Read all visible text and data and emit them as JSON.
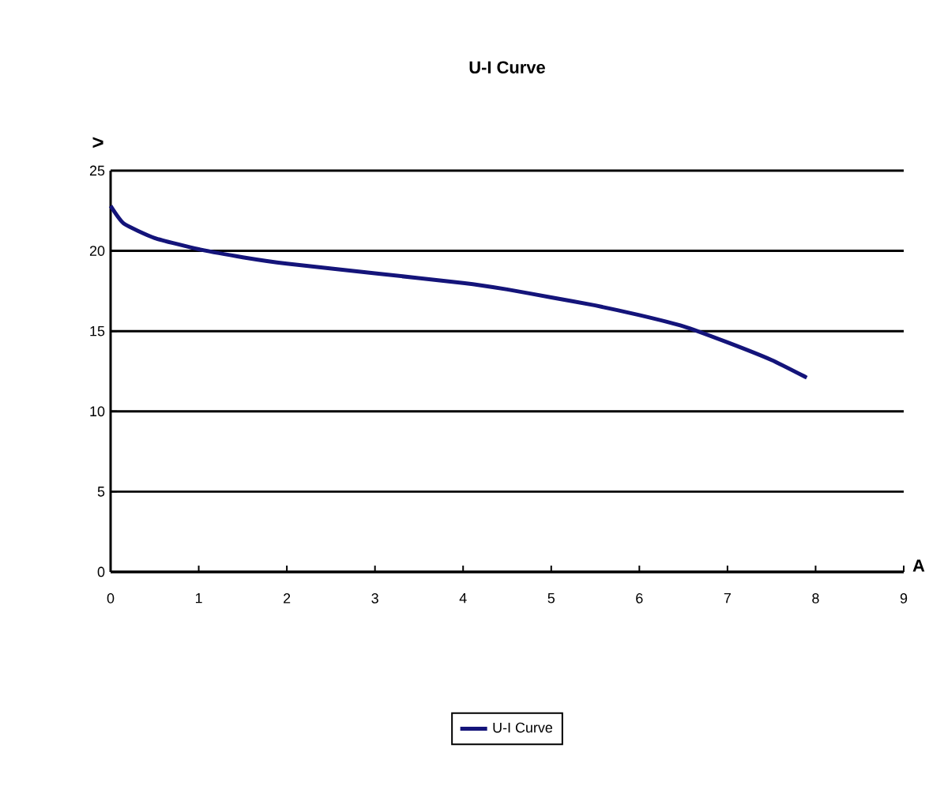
{
  "chart_data": {
    "type": "line",
    "title": "U-I Curve",
    "xlabel": "A",
    "ylabel": ">",
    "series": [
      {
        "name": "U-I Curve",
        "color": "#14147a",
        "x": [
          0,
          0.15,
          0.5,
          1,
          1.5,
          2,
          3,
          4,
          4.5,
          5,
          5.5,
          6,
          6.5,
          7,
          7.5,
          7.9
        ],
        "values": [
          22.8,
          21.7,
          20.8,
          20.1,
          19.6,
          19.2,
          18.6,
          18.0,
          17.6,
          17.1,
          16.6,
          16.0,
          15.3,
          14.3,
          13.2,
          12.1
        ]
      }
    ],
    "xlim": [
      0,
      9
    ],
    "xticks": [
      0,
      1,
      2,
      3,
      4,
      5,
      6,
      7,
      8,
      9
    ],
    "ylim": [
      0,
      25
    ],
    "yticks": [
      0,
      5,
      10,
      15,
      20,
      25
    ],
    "grid": "y",
    "legend": "bottom",
    "marker": "none",
    "line_style": "solid"
  }
}
